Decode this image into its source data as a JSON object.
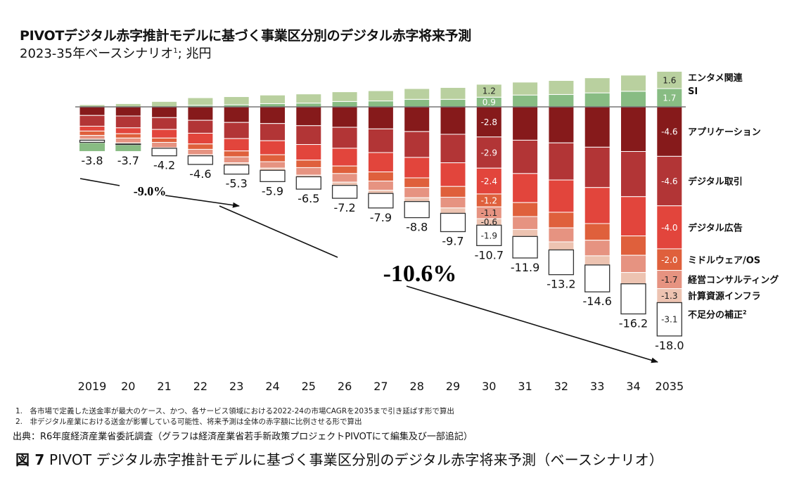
{
  "header": {
    "title": "PIVOTデジタル赤字推計モデルに基づく事業区分別のデジタル赤字将来予測",
    "subtitle": "2023-35年ベースシナリオ",
    "subtitle_sup": "1",
    "subtitle_unit": "; 兆円"
  },
  "chart_data": {
    "type": "bar",
    "stacked": true,
    "categories": [
      "2019",
      "20",
      "21",
      "22",
      "23",
      "24",
      "25",
      "26",
      "27",
      "28",
      "29",
      "30",
      "31",
      "32",
      "33",
      "34",
      "2035"
    ],
    "totals": [
      "-3.8",
      "-3.7",
      "-4.2",
      "-4.6",
      "-5.3",
      "-5.9",
      "-6.5",
      "-7.2",
      "-7.9",
      "-8.8",
      "-9.7",
      "-10.7",
      "-11.9",
      "-13.2",
      "-14.6",
      "-16.2",
      "-18.0"
    ],
    "labeled_categories": [
      "30",
      "2035"
    ],
    "series": [
      {
        "key": "entame",
        "name": "エンタメ関連",
        "color": "#b9d09f",
        "values": [
          0.2,
          0.3,
          0.5,
          0.7,
          0.75,
          0.8,
          0.85,
          0.9,
          0.95,
          1.0,
          1.1,
          1.2,
          1.2,
          1.3,
          1.4,
          1.5,
          1.6
        ]
      },
      {
        "key": "si",
        "name": "SI",
        "color": "#88bc83",
        "values": [
          0,
          0,
          0,
          0.15,
          0.2,
          0.3,
          0.35,
          0.5,
          0.55,
          0.7,
          0.7,
          0.9,
          1.1,
          1.15,
          1.3,
          1.45,
          1.7
        ]
      },
      {
        "key": "app",
        "name": "アプリケーション",
        "color": "#861a1b",
        "values": [
          -0.8,
          -0.85,
          -1.0,
          -1.25,
          -1.45,
          -1.55,
          -1.75,
          -1.9,
          -2.05,
          -2.3,
          -2.55,
          -2.8,
          -3.1,
          -3.35,
          -3.75,
          -4.15,
          -4.6
        ]
      },
      {
        "key": "trade",
        "name": "デジタル取引",
        "color": "#b23536",
        "values": [
          -1.0,
          -1.1,
          -1.1,
          -1.2,
          -1.5,
          -1.6,
          -1.75,
          -1.95,
          -2.2,
          -2.4,
          -2.65,
          -2.9,
          -3.1,
          -3.45,
          -3.75,
          -4.2,
          -4.6
        ]
      },
      {
        "key": "ad",
        "name": "デジタル広告",
        "color": "#e2453c",
        "values": [
          -0.45,
          -0.55,
          -0.8,
          -1.0,
          -1.15,
          -1.3,
          -1.45,
          -1.65,
          -1.8,
          -1.9,
          -2.2,
          -2.4,
          -2.7,
          -3.0,
          -3.35,
          -3.65,
          -4.0
        ]
      },
      {
        "key": "mid",
        "name": "ミドルウェア/OS",
        "color": "#df603c",
        "values": [
          -0.4,
          -0.4,
          -0.4,
          -0.5,
          -0.55,
          -0.65,
          -0.7,
          -0.7,
          -0.85,
          -0.9,
          -1.0,
          -1.2,
          -1.3,
          -1.45,
          -1.55,
          -1.8,
          -2.0
        ]
      },
      {
        "key": "cons",
        "name": "経営コンサルティング",
        "color": "#e69381",
        "values": [
          -0.35,
          -0.45,
          -0.5,
          -0.5,
          -0.55,
          -0.6,
          -0.7,
          -0.8,
          -0.85,
          -0.95,
          -1.0,
          -1.1,
          -1.2,
          -1.3,
          -1.45,
          -1.6,
          -1.7
        ]
      },
      {
        "key": "infra",
        "name": "計算資源インフラ",
        "color": "#edc3b1",
        "values": [
          -0.1,
          -0.1,
          -0.05,
          -0.1,
          -0.2,
          -0.2,
          -0.15,
          -0.3,
          -0.3,
          -0.35,
          -0.5,
          -0.6,
          -0.65,
          -0.75,
          -0.85,
          -1.05,
          -1.3
        ]
      },
      {
        "key": "corr",
        "name": "不足分の補正",
        "name_sup": "2",
        "color": "#ffffff",
        "values": [
          -0.2,
          -0.05,
          -0.7,
          -0.8,
          -0.85,
          -1.05,
          -1.15,
          -1.2,
          -1.35,
          -1.5,
          -1.7,
          -1.9,
          -2.0,
          -2.3,
          -2.5,
          -2.8,
          -3.1
        ]
      }
    ],
    "si_below_bar": [
      0.75,
      0.55,
      0,
      0,
      0,
      0,
      0,
      0,
      0,
      0,
      0,
      0,
      0,
      0,
      0,
      0,
      0
    ],
    "annotations": [
      {
        "text": "-9.0%",
        "from": "2019",
        "to": "23"
      },
      {
        "text": "-10.6%",
        "from": "23",
        "to": "2035"
      }
    ]
  },
  "footnotes": [
    "1.　各市場で定義した送金率が最大のケース、かつ、各サービス領域における2022-24の市場CAGRを2035まで引き延ばす形で算出",
    "2.　非デジタル産業における送金が影響している可能性、将来予測は全体の赤字額に比例させる形で算出"
  ],
  "source": "出典：R6年度経済産業省委託調査（グラフは経済産業省若手新政策プロジェクトPIVOTにて編集及び一部追記）",
  "caption": {
    "fig": "図 7",
    "text": " PIVOT デジタル赤字推計モデルに基づく事業区分別のデジタル赤字将来予測（ベースシナリオ）"
  }
}
